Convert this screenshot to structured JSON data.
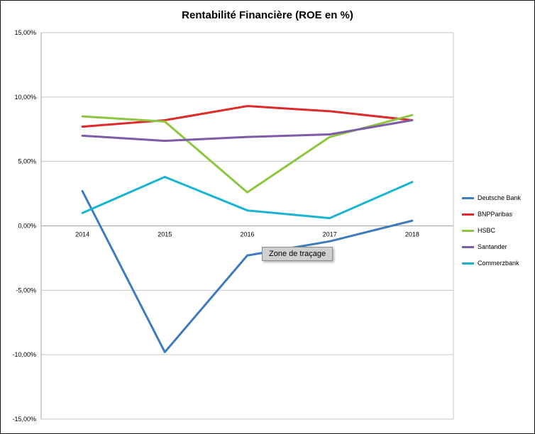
{
  "tooltip": "Zone de traçage",
  "chart_data": {
    "type": "line",
    "title": "Rentabilité Financière (ROE en %)",
    "categories": [
      "2014",
      "2015",
      "2016",
      "2017",
      "2018"
    ],
    "series": [
      {
        "name": "Deutsche Bank",
        "color": "#3E7BBE",
        "values": [
          2.7,
          -9.8,
          -2.3,
          -1.2,
          0.4
        ]
      },
      {
        "name": "BNPParibas",
        "color": "#DE2A2A",
        "values": [
          7.7,
          8.2,
          9.3,
          8.9,
          8.2
        ]
      },
      {
        "name": "HSBC",
        "color": "#8DC63F",
        "values": [
          8.5,
          8.1,
          2.6,
          6.9,
          8.6
        ]
      },
      {
        "name": "Santander",
        "color": "#7D5BA6",
        "values": [
          7.0,
          6.6,
          6.9,
          7.1,
          8.2
        ]
      },
      {
        "name": "Commerzbank",
        "color": "#19B4D1",
        "values": [
          1.0,
          3.8,
          1.2,
          0.6,
          3.4
        ]
      }
    ],
    "ylim": [
      -15,
      15
    ],
    "ytick_step": 5,
    "ytick_labels": [
      "15,00%",
      "10,00%",
      "5,00%",
      "0,00%",
      "-5,00%",
      "-10,00%",
      "-15,00%"
    ],
    "xlabel": "",
    "ylabel": "",
    "grid": true,
    "legend_position": "right"
  }
}
